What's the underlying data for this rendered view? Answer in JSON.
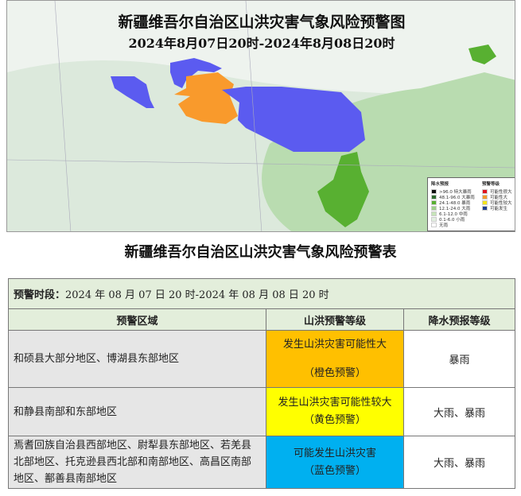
{
  "map": {
    "title": "新疆维吾尔自治区山洪灾害气象风险预警图",
    "subtitle": "2024年8月07日20时-2024年8月08日20时",
    "legend": {
      "rain_title": "降水预报",
      "rain_items": [
        {
          "label": ">96.0 特大暴雨",
          "color": "#111111"
        },
        {
          "label": "48.1-96.0 大暴雨",
          "color": "#2e6b2e"
        },
        {
          "label": "24.1-48.0 暴雨",
          "color": "#58b031"
        },
        {
          "label": "12.1-24.0 大雨",
          "color": "#9fd08a"
        },
        {
          "label": "6.1-12.0 中雨",
          "color": "#c6e4b8"
        },
        {
          "label": "0.1-6.0 小雨",
          "color": "#e2efe0"
        },
        {
          "label": "无雨",
          "color": "#ffffff"
        }
      ],
      "warn_title": "预警等级",
      "warn_items": [
        {
          "label": "可能性很大",
          "color": "#e0141e"
        },
        {
          "label": "可能性大",
          "color": "#f39a2b"
        },
        {
          "label": "可能性较大",
          "color": "#f5e51a"
        },
        {
          "label": "可能发生",
          "color": "#1f3f8f"
        }
      ]
    },
    "colors": {
      "orange": "#f99a2c",
      "blue": "#5b5bf0",
      "green": "#58b031"
    }
  },
  "table": {
    "title": "新疆维吾尔自治区山洪灾害气象风险预警表",
    "period_label": "预警时段：",
    "period_value": "2024 年 08 月 07 日 20 时-2024 年 08 月 08 日 20 时",
    "headers": [
      "预警区域",
      "山洪预警等级",
      "降水预报等级"
    ],
    "rows": [
      {
        "area": "和硕县大部分地区、博湖县东部地区",
        "level": "发生山洪灾害可能性大",
        "level_tag": "（橙色预警）",
        "level_color": "#ffc000",
        "rain": "暴雨"
      },
      {
        "area": "和静县南部和东部地区",
        "level": "发生山洪灾害可能性较大",
        "level_tag": "（黄色预警）",
        "level_color": "#ffff00",
        "rain": "大雨、暴雨"
      },
      {
        "area": "焉耆回族自治县西部地区、尉犁县东部地区、若羌县北部地区、托克逊县西北部和南部地区、高昌区南部地区、鄯善县南部地区",
        "level": "可能发生山洪灾害",
        "level_tag": "（蓝色预警）",
        "level_color": "#00b0f0",
        "rain": "大雨、暴雨"
      }
    ]
  }
}
